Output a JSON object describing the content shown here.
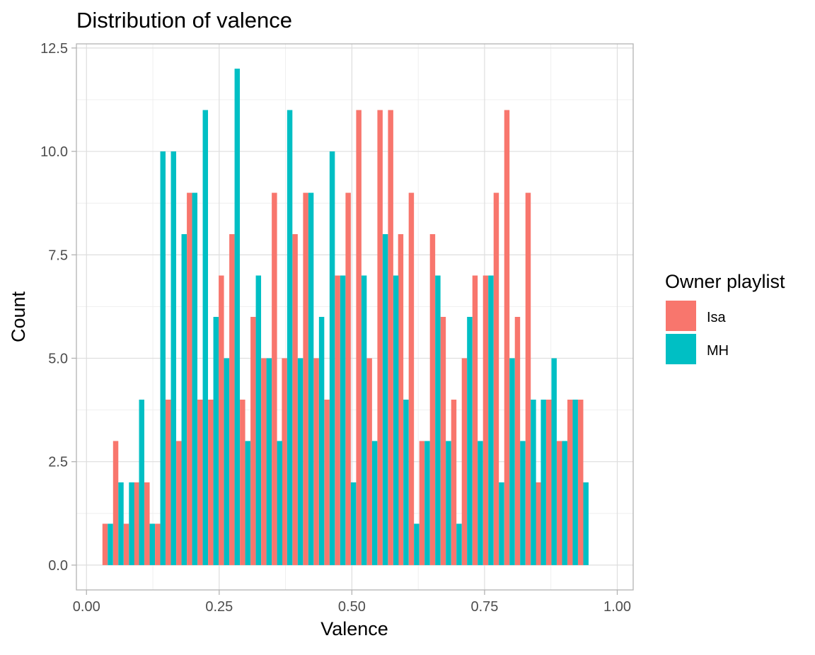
{
  "chart_data": {
    "type": "bar",
    "title": "Distribution of valence",
    "xlabel": "Valence",
    "ylabel": "Count",
    "xlim": [
      -0.019,
      1.03
    ],
    "ylim": [
      -0.6,
      12.6
    ],
    "x_ticks": [
      0.0,
      0.25,
      0.5,
      0.75,
      1.0
    ],
    "x_tick_labels": [
      "0.00",
      "0.25",
      "0.50",
      "0.75",
      "1.00"
    ],
    "y_ticks": [
      0.0,
      2.5,
      5.0,
      7.5,
      10.0,
      12.5
    ],
    "y_tick_labels": [
      "0.0",
      "2.5",
      "5.0",
      "7.5",
      "10.0",
      "12.5"
    ],
    "grid": true,
    "bin_width": 0.0199,
    "legend": {
      "title": "Owner playlist",
      "position": "right"
    },
    "series": [
      {
        "name": "Isa",
        "color": "#F8766D",
        "x": [
          0.04,
          0.06,
          0.08,
          0.099,
          0.119,
          0.139,
          0.159,
          0.179,
          0.199,
          0.219,
          0.239,
          0.259,
          0.279,
          0.299,
          0.319,
          0.339,
          0.359,
          0.378,
          0.398,
          0.418,
          0.438,
          0.458,
          0.478,
          0.498,
          0.518,
          0.538,
          0.558,
          0.578,
          0.597,
          0.617,
          0.637,
          0.657,
          0.677,
          0.697,
          0.717,
          0.737,
          0.757,
          0.777,
          0.797,
          0.817,
          0.837,
          0.856,
          0.876,
          0.896,
          0.916,
          0.936
        ],
        "values": [
          1,
          3,
          1,
          2,
          2,
          1,
          4,
          3,
          9,
          4,
          4,
          7,
          8,
          4,
          6,
          5,
          9,
          5,
          8,
          9,
          5,
          4,
          7,
          9,
          11,
          5,
          11,
          11,
          8,
          9,
          3,
          8,
          6,
          4,
          5,
          7,
          7,
          9,
          11,
          6,
          9,
          2,
          4,
          3,
          4,
          4
        ]
      },
      {
        "name": "MH",
        "color": "#00BFC4",
        "x": [
          0.04,
          0.06,
          0.08,
          0.099,
          0.119,
          0.139,
          0.159,
          0.179,
          0.199,
          0.219,
          0.239,
          0.259,
          0.279,
          0.299,
          0.319,
          0.339,
          0.359,
          0.378,
          0.398,
          0.418,
          0.438,
          0.458,
          0.478,
          0.498,
          0.518,
          0.538,
          0.558,
          0.578,
          0.597,
          0.617,
          0.637,
          0.657,
          0.677,
          0.697,
          0.717,
          0.737,
          0.757,
          0.777,
          0.797,
          0.817,
          0.837,
          0.856,
          0.876,
          0.896,
          0.916,
          0.936
        ],
        "values": [
          1,
          2,
          2,
          4,
          1,
          10,
          10,
          8,
          9,
          11,
          6,
          5,
          12,
          3,
          7,
          5,
          3,
          11,
          5,
          9,
          6,
          10,
          7,
          2,
          7,
          3,
          8,
          7,
          4,
          1,
          3,
          7,
          3,
          1,
          6,
          3,
          7,
          2,
          5,
          3,
          4,
          4,
          5,
          3,
          4,
          2
        ]
      }
    ]
  }
}
